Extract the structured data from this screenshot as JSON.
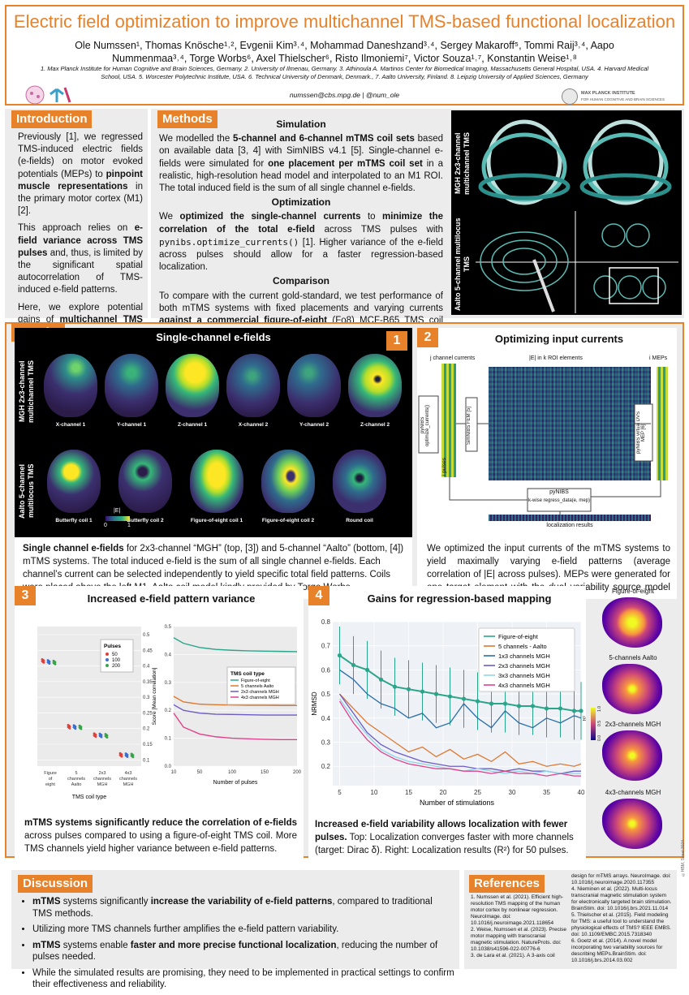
{
  "header": {
    "title": "Electric field optimization to improve multichannel TMS-based functional localization",
    "authors": "Ole Numssen¹, Thomas Knösche¹˒², Evgenii Kim³˒⁴, Mohammad Daneshzand³˒⁴, Sergey Makaroff⁵, Tommi Raij³˒⁴, Aapo Nummenmaa³˒⁴, Torge Worbs⁶, Axel Thielscher⁶, Risto Ilmoniemi⁷, Victor Souza¹˒⁷, Konstantin Weise¹˒⁸",
    "affiliations": "1. Max Planck Institute for Human Cognitive and Brain Sciences, Germany. 2. University of Ilmenau, Germany. 3. Athinoula A. Martinos Center for Biomedical Imaging, Massachusetts General Hospital, USA. 4. Harvard Medical School, USA. 5. Worcester Polytechnic Institute, USA. 6. Technical University of Denmark, Denmark., 7. Aalto University, Finland. 8. Leipzig University of Applied Sciences, Germany",
    "contact": "numssen@cbs.mpg.de | @num_ole",
    "institute_line1": "MAX PLANCK INSTITUTE",
    "institute_line2": "FOR HUMAN COGNITIVE AND BRAIN SCIENCES"
  },
  "introduction": {
    "label": "Introduction",
    "p1_a": "Previously [1], we regressed TMS-induced electric fields (e-fields) on motor evoked potentials (MEPs) to ",
    "p1_b": "pinpoint muscle representations",
    "p1_c": " in the primary motor cortex (M1) [2].",
    "p2_a": "This approach relies on ",
    "p2_b": "e-field variance across TMS pulses",
    "p2_c": " and, thus, is limited by the significant spatial autocorrelation of TMS-induced e-field patterns.",
    "p3_a": "Here, we explore potential gains of ",
    "p3_b": "multichannel TMS (mTMS) devices for regression-based localization approaches."
  },
  "methods": {
    "label": "Methods",
    "simulation_head": "Simulation",
    "sim_a": "We modelled the ",
    "sim_b": "5-channel and 6-channel mTMS coil sets",
    "sim_c": " based on available data [3, 4] with SimNIBS v4.1 [5]. Single-channel e-fields were simulated for ",
    "sim_d": "one placement per mTMS coil set",
    "sim_e": " in a realistic, high-resolution head model and interpolated to an M1 ROI. The total induced field is the sum of all single channel e-fields.",
    "optimization_head": "Optimization",
    "opt_a": "We ",
    "opt_b": "optimized the single-channel currents",
    "opt_c": " to ",
    "opt_d": "minimize the correlation of the total e-field",
    "opt_e": " across TMS pulses with ",
    "opt_code": "pynibs.optimize_currents()",
    "opt_f": " [1]. Higher variance of the e-field across pulses should allow for a faster regression-based localization.",
    "comparison_head": "Comparison",
    "cmp_a": "To compare with the current gold-standard, we test performance of both mTMS systems with fixed placements and varying currents ",
    "cmp_b": "against a commercial figure-of-eight",
    "cmp_c": " (Fo8) MCF-B65 TMS coil with variable placements in a virtual regression-based motor mapping.",
    "fig_label_top": "MGH 2x3-channel multichannel TMS",
    "fig_label_bottom": "Aalto 5-channel multilocus TMS"
  },
  "results": {
    "label": "Results",
    "panel1": {
      "num": "1",
      "title": "Single-channel e-fields",
      "row1_label": "MGH 2x3-channel multichannel TMS",
      "row2_label": "Aalto 5-channel multilocus TMS",
      "row1_heads": [
        "X-channel 1",
        "Y-channel 1",
        "Z-channel 1",
        "X-channel 2",
        "Y-channel 2",
        "Z-channel 2"
      ],
      "row2_heads": [
        "Butterfly coil 1",
        "Butterfly coil 2",
        "Figure-of-eight coil 1",
        "Figure-of-eight coil 2",
        "Round coil"
      ],
      "cbar_label": "|E|",
      "cbar_min": "0",
      "cbar_max": "1",
      "caption_a": "Single channel e-fields",
      "caption_b": " for 2x3-channel “MGH” (top, [3]) and 5-channel “Aalto” (bottom, [4]) mTMS systems. The total induced e-field is the sum of all single channel e-fields. Each channel’s current can be selected independently to yield specific total field patterns. Coils were placed above the left M1. Aalto coil model kindly provided by Torge Worbs."
    },
    "panel2": {
      "num": "2",
      "title": "Optimizing input currents",
      "lbl_channels": "j channel currents",
      "lbl_eroi": "|E| in k ROI elements",
      "lbl_meps": "i MEPs",
      "lbl_pulses": "i pulses",
      "box_pynibs_opt": "pyNIBS optimize_currents()",
      "box_simnibs": "SimNIBS FEM [5]",
      "box_virtual": "pyNIBS virtual DVS MEP [6]",
      "box_regress_1": "pyNIBS",
      "box_regress_2": "k-wise regress_data(e, mep)",
      "lbl_results": "localization results",
      "caption": "We optimized the input currents of the mTMS systems to yield maximally varying e-field patterns (average correlation of |E| across pulses). MEPs were generated for one target element with the dual variability source model [6]."
    },
    "panel3": {
      "num": "3",
      "title": "Increased e-field pattern variance",
      "caption_a": "mTMS systems significantly reduce the correlation of e-fields",
      "caption_b": " across pulses compared to using a figure-of-eight TMS coil. More TMS channels yield higher variance between e-field patterns."
    },
    "panel4": {
      "num": "4",
      "title": "Gains for regression-based mapping",
      "map_labels": [
        "Figure-of-eight",
        "5-channels Aalto",
        "2x3-channels MGH",
        "4x3-channels MGH"
      ],
      "map_cbar_label": "R²",
      "map_cbar_ticks": [
        "0.0",
        "0.5",
        "1.0"
      ],
      "caption_a": "Increased e-field variability allows localization with fewer pulses.",
      "caption_b": " Top: Localization converges faster with more channels (target: Dirac δ). Right: Localization results (R²) for 50 pulses."
    }
  },
  "discussion": {
    "label": "Discussion",
    "items": [
      {
        "a": "mTMS",
        "b": " systems significantly ",
        "c": "increase the variability of e-field patterns",
        "d": ", compared to traditional TMS methods."
      },
      {
        "a": "",
        "b": "Utilizing more TMS channels further amplifies the e-field pattern variability.",
        "c": "",
        "d": ""
      },
      {
        "a": "mTMS",
        "b": " systems enable ",
        "c": "faster and more precise functional localization",
        "d": ", reducing the number of pulses needed."
      },
      {
        "a": "",
        "b": "While the simulated results are promising, they need to be implemented in practical settings to confirm their effectiveness and reliability.",
        "c": "",
        "d": ""
      }
    ]
  },
  "references": {
    "label": "References",
    "col1": "1. Numssen et al. (2021). Efficient high-resolution TMS mapping of the human motor cortex by nonlinear regression. NeuroImage. doi: 10.1016/j.neuroimage.2021.118654\n2. Weise, Numssen et al. (2023). Precise motor mapping with transcranial magnetic stimulation. NatureProts. doi: 10.1038/s41596-022-00776-6\n3. de Lara et al. (2021). A 3-axis coil",
    "col2": "design for mTMS arrays. NeuroImage. doi: 10.1016/j.neuroimage.2020.117355\n4. Nieminen et al. (2022). Multi-locus transcranial magnetic stimulation system for electronically targeted brain stimulation. BrainStim. doi: 10.1016/j.brs.2021.11.014\n5. Thielscher et al. (2015). Field modeling for TMS: a useful tool to understand the physiological effects of TMS? IEEE EMBS. doi: 10.1109/EMBC.2015.7318340\n6. Goetz et al. (2014). A novel model incorporating two variability sources for describing MEPs.BrainStim. doi: 10.1016/j.brs.2014.03.002"
  },
  "footer_mark": "©HBM, Seoul 2024",
  "chart_data": [
    {
      "type": "scatter",
      "xlabel": "TMS coil type",
      "ylabel": "",
      "categories": [
        "Figure of eight",
        "5 channels Aalto",
        "2x3 channels MGH",
        "4x3 channels MGH"
      ],
      "ylim": [
        0.08,
        0.5
      ],
      "yticks": [
        0.1,
        0.15,
        0.2,
        0.25,
        0.3,
        0.35,
        0.4,
        0.45,
        0.5
      ],
      "legend_title": "Pulses",
      "legend_position": "top-right",
      "series": [
        {
          "name": "50",
          "color": "#e0413a",
          "values": [
            0.415,
            0.205,
            0.178,
            0.115
          ]
        },
        {
          "name": "100",
          "color": "#3a6fd0",
          "values": [
            0.412,
            0.204,
            0.177,
            0.114
          ]
        },
        {
          "name": "200",
          "color": "#3aa34a",
          "values": [
            0.41,
            0.203,
            0.176,
            0.113
          ]
        }
      ]
    },
    {
      "type": "line",
      "xlabel": "Number of pulses",
      "ylabel": "Score [Mean correlation]",
      "x": [
        10,
        25,
        50,
        75,
        100,
        125,
        150,
        175,
        200
      ],
      "xticks": [
        10,
        50,
        100,
        150,
        200
      ],
      "xlim": [
        10,
        200
      ],
      "ylim": [
        0.0,
        0.5
      ],
      "yticks": [
        0.0,
        0.1,
        0.2,
        0.3,
        0.4,
        0.5
      ],
      "legend_title": "TMS coil type",
      "legend_position": "middle-right",
      "series": [
        {
          "name": "Figure-of-eight",
          "color": "#2aa58a",
          "values": [
            0.46,
            0.44,
            0.425,
            0.418,
            0.415,
            0.413,
            0.412,
            0.411,
            0.41
          ]
        },
        {
          "name": "5 channels Aalto",
          "color": "#e0782f",
          "values": [
            0.25,
            0.23,
            0.222,
            0.22,
            0.219,
            0.218,
            0.218,
            0.217,
            0.217
          ]
        },
        {
          "name": "2x3 channels MGH",
          "color": "#6d5bc7",
          "values": [
            0.22,
            0.2,
            0.19,
            0.186,
            0.185,
            0.184,
            0.183,
            0.183,
            0.183
          ]
        },
        {
          "name": "4x3 channels MGH",
          "color": "#e0418a",
          "values": [
            0.19,
            0.14,
            0.115,
            0.105,
            0.1,
            0.098,
            0.096,
            0.095,
            0.095
          ]
        }
      ]
    },
    {
      "type": "line",
      "xlabel": "Number of stimulations",
      "ylabel": "NRMSD",
      "x": [
        5,
        7,
        9,
        11,
        13,
        15,
        17,
        19,
        21,
        23,
        25,
        27,
        29,
        31,
        33,
        35,
        37,
        39,
        40
      ],
      "xticks": [
        5,
        10,
        15,
        20,
        25,
        30,
        35,
        40
      ],
      "xlim": [
        4,
        40
      ],
      "ylim": [
        0.12,
        0.8
      ],
      "yticks": [
        0.2,
        0.3,
        0.4,
        0.5,
        0.6,
        0.7,
        0.8
      ],
      "legend_position": "top-right",
      "series": [
        {
          "name": "Figure-of-eight",
          "color": "#2aa58a",
          "values": [
            0.66,
            0.62,
            0.6,
            0.56,
            0.53,
            0.52,
            0.51,
            0.5,
            0.49,
            0.48,
            0.47,
            0.46,
            0.46,
            0.45,
            0.45,
            0.44,
            0.44,
            0.43,
            0.43
          ]
        },
        {
          "name": "5 channels - Aalto",
          "color": "#e0782f",
          "values": [
            0.5,
            0.44,
            0.38,
            0.34,
            0.3,
            0.26,
            0.28,
            0.24,
            0.27,
            0.23,
            0.25,
            0.22,
            0.26,
            0.21,
            0.22,
            0.2,
            0.21,
            0.2,
            0.21
          ]
        },
        {
          "name": "1x3 channels MGH",
          "color": "#2a6ea8",
          "values": [
            0.6,
            0.56,
            0.5,
            0.46,
            0.44,
            0.4,
            0.42,
            0.36,
            0.38,
            0.46,
            0.4,
            0.36,
            0.43,
            0.38,
            0.36,
            0.4,
            0.38,
            0.41,
            0.4
          ]
        },
        {
          "name": "2x3 channels MGH",
          "color": "#6d5bc7",
          "values": [
            0.5,
            0.42,
            0.34,
            0.29,
            0.26,
            0.24,
            0.22,
            0.21,
            0.2,
            0.2,
            0.19,
            0.19,
            0.18,
            0.19,
            0.18,
            0.18,
            0.17,
            0.18,
            0.18
          ]
        },
        {
          "name": "3x3 channels MGH",
          "color": "#8fd6e8",
          "values": [
            0.48,
            0.4,
            0.33,
            0.27,
            0.24,
            0.22,
            0.21,
            0.2,
            0.19,
            0.18,
            0.19,
            0.18,
            0.17,
            0.18,
            0.17,
            0.18,
            0.17,
            0.17,
            0.17
          ]
        },
        {
          "name": "4x3 channels MGH",
          "color": "#e0418a",
          "values": [
            0.47,
            0.38,
            0.31,
            0.26,
            0.23,
            0.21,
            0.2,
            0.19,
            0.19,
            0.18,
            0.18,
            0.17,
            0.18,
            0.17,
            0.17,
            0.16,
            0.17,
            0.16,
            0.16
          ]
        }
      ]
    }
  ]
}
